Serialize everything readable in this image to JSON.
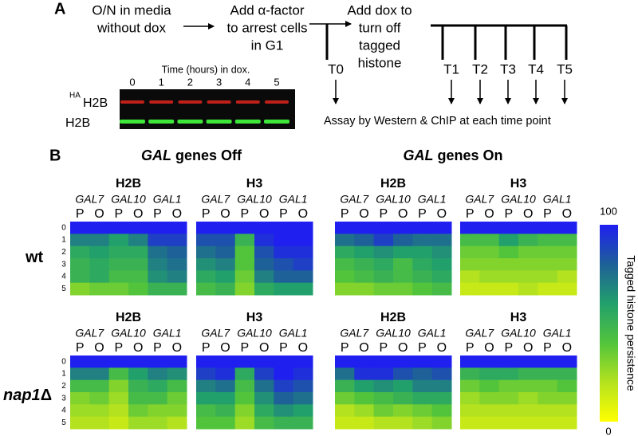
{
  "panel_a": {
    "label": "A",
    "steps": [
      {
        "lines": [
          "O/N in media",
          "without dox"
        ]
      },
      {
        "lines": [
          "Add α-factor",
          "to arrest cells",
          "in G1"
        ]
      },
      {
        "lines": [
          "Add dox to",
          "turn off",
          "tagged",
          "histone"
        ]
      }
    ],
    "time_points": [
      "T0",
      "T1",
      "T2",
      "T3",
      "T4",
      "T5"
    ],
    "assay": "Assay by Western & ChIP  at each time point",
    "blot": {
      "time_label": "Time (hours) in dox.",
      "lanes": [
        "0",
        "1",
        "2",
        "3",
        "4",
        "5"
      ],
      "rows": [
        {
          "superscript": "HA",
          "label": "H2B"
        },
        {
          "label": "H2B"
        }
      ]
    }
  },
  "panel_b": {
    "label": "B",
    "conditions": [
      {
        "gene": "GAL",
        "state": "genes Off"
      },
      {
        "gene": "GAL",
        "state": "genes On"
      }
    ],
    "genes": [
      "GAL7",
      "GAL10",
      "GAL1"
    ],
    "regions": [
      "P",
      "O",
      "P",
      "O",
      "P",
      "O"
    ],
    "times": [
      "0",
      "1",
      "2",
      "3",
      "4",
      "5"
    ],
    "strains": [
      {
        "name": "wt",
        "panels": [
          {
            "histone": "H2B",
            "values": [
              [
                100,
                100,
                100,
                100,
                100,
                100
              ],
              [
                70,
                70,
                60,
                70,
                90,
                90
              ],
              [
                55,
                60,
                55,
                55,
                75,
                80
              ],
              [
                50,
                55,
                50,
                50,
                70,
                75
              ],
              [
                50,
                55,
                45,
                45,
                65,
                70
              ],
              [
                30,
                35,
                35,
                40,
                50,
                50
              ]
            ]
          },
          {
            "histone": "H3",
            "values": [
              [
                100,
                100,
                100,
                100,
                100,
                100
              ],
              [
                85,
                85,
                50,
                95,
                100,
                100
              ],
              [
                75,
                80,
                40,
                85,
                95,
                95
              ],
              [
                65,
                70,
                40,
                80,
                85,
                90
              ],
              [
                55,
                60,
                35,
                70,
                80,
                80
              ],
              [
                45,
                50,
                30,
                55,
                60,
                60
              ]
            ]
          },
          {
            "histone": "H2B",
            "values": [
              [
                100,
                100,
                100,
                100,
                100,
                100
              ],
              [
                75,
                80,
                90,
                80,
                75,
                75
              ],
              [
                55,
                60,
                65,
                60,
                60,
                65
              ],
              [
                45,
                50,
                55,
                45,
                55,
                60
              ],
              [
                40,
                45,
                50,
                45,
                50,
                55
              ],
              [
                30,
                30,
                35,
                35,
                40,
                45
              ]
            ]
          },
          {
            "histone": "H3",
            "values": [
              [
                100,
                100,
                100,
                100,
                100,
                100
              ],
              [
                45,
                45,
                60,
                50,
                45,
                45
              ],
              [
                35,
                35,
                40,
                35,
                35,
                35
              ],
              [
                30,
                30,
                30,
                30,
                30,
                30
              ],
              [
                20,
                25,
                25,
                25,
                25,
                20
              ],
              [
                15,
                15,
                15,
                20,
                15,
                15
              ]
            ]
          }
        ]
      },
      {
        "name": "nap1",
        "suffix": "Δ",
        "panels": [
          {
            "histone": "H2B",
            "values": [
              [
                100,
                100,
                100,
                100,
                100,
                100
              ],
              [
                70,
                70,
                45,
                60,
                70,
                65
              ],
              [
                45,
                45,
                30,
                50,
                55,
                45
              ],
              [
                30,
                35,
                25,
                45,
                45,
                35
              ],
              [
                25,
                25,
                20,
                35,
                30,
                30
              ],
              [
                20,
                20,
                15,
                25,
                25,
                20
              ]
            ]
          },
          {
            "histone": "H3",
            "values": [
              [
                100,
                100,
                100,
                100,
                100,
                100
              ],
              [
                90,
                95,
                55,
                90,
                100,
                95
              ],
              [
                70,
                75,
                45,
                75,
                90,
                85
              ],
              [
                60,
                60,
                40,
                65,
                80,
                75
              ],
              [
                45,
                50,
                30,
                55,
                65,
                60
              ],
              [
                40,
                40,
                25,
                45,
                50,
                50
              ]
            ]
          },
          {
            "histone": "H2B",
            "values": [
              [
                100,
                100,
                100,
                100,
                100,
                100
              ],
              [
                75,
                95,
                95,
                85,
                80,
                85
              ],
              [
                50,
                60,
                65,
                60,
                70,
                70
              ],
              [
                35,
                40,
                45,
                50,
                55,
                55
              ],
              [
                20,
                25,
                35,
                30,
                35,
                40
              ],
              [
                15,
                15,
                20,
                20,
                25,
                30
              ]
            ]
          },
          {
            "histone": "H3",
            "values": [
              [
                100,
                100,
                100,
                100,
                100,
                100
              ],
              [
                50,
                55,
                55,
                50,
                50,
                50
              ],
              [
                35,
                40,
                35,
                35,
                35,
                40
              ],
              [
                25,
                30,
                30,
                25,
                30,
                30
              ],
              [
                20,
                20,
                20,
                20,
                20,
                20
              ],
              [
                15,
                15,
                15,
                15,
                15,
                15
              ]
            ]
          }
        ]
      }
    ],
    "colorbar": {
      "title": "Tagged histone persistence",
      "lim": [
        0,
        100
      ],
      "ticks": [
        0,
        100
      ],
      "colors": [
        "#ffff00",
        "#b4e21e",
        "#52c43c",
        "#22a06c",
        "#1e6098",
        "#1f1ff0"
      ]
    }
  }
}
